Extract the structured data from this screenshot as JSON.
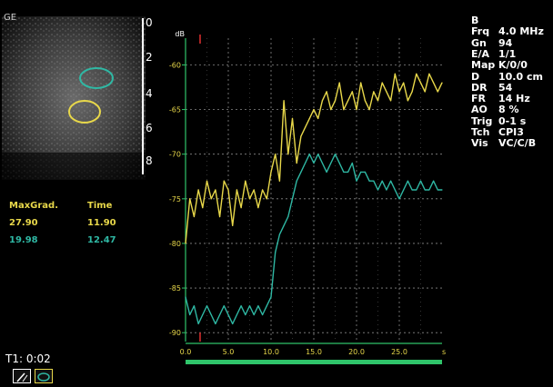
{
  "image_label": "GE",
  "depth_scale": {
    "ticks": [
      "0",
      "2",
      "4",
      "6",
      "8"
    ]
  },
  "parameters": [
    {
      "key": "B",
      "value": ""
    },
    {
      "key": "Frq",
      "value": "4.0 MHz"
    },
    {
      "key": "Gn",
      "value": "94"
    },
    {
      "key": "E/A",
      "value": "1/1"
    },
    {
      "key": "Map",
      "value": "K/0/0"
    },
    {
      "key": "D",
      "value": "10.0 cm"
    },
    {
      "key": "DR",
      "value": "54"
    },
    {
      "key": "FR",
      "value": "14 Hz"
    },
    {
      "key": "AO",
      "value": "8 %"
    },
    {
      "key": "Trig",
      "value": "0-1 s"
    },
    {
      "key": "Tch",
      "value": "CPI3"
    },
    {
      "key": "Vis",
      "value": "VC/C/B"
    }
  ],
  "measurements": {
    "col1_header": "MaxGrad.",
    "col2_header": "Time",
    "rows": [
      {
        "maxgrad": "27.90",
        "time": "11.90",
        "color": "#e8d84a"
      },
      {
        "maxgrad": "19.98",
        "time": "12.47",
        "color": "#2fb8a4"
      }
    ]
  },
  "status": {
    "t1": "T1: 0:02"
  },
  "chart_data": {
    "type": "line",
    "ylabel": "dB",
    "xlabel": "s",
    "xlim": [
      0,
      30
    ],
    "ylim": [
      -91,
      -57
    ],
    "xticks": [
      "0.0",
      "5.0",
      "10.0",
      "15.0",
      "20.0",
      "25.0"
    ],
    "yticks": [
      "-60",
      "-65",
      "-70",
      "-75",
      "-80",
      "-85",
      "-90"
    ],
    "grid": true,
    "series": [
      {
        "color": "#e8d84a",
        "x": [
          0.0,
          0.5,
          1.0,
          1.5,
          2.0,
          2.5,
          3.0,
          3.5,
          4.0,
          4.5,
          5.0,
          5.5,
          6.0,
          6.5,
          7.0,
          7.5,
          8.0,
          8.5,
          9.0,
          9.5,
          10.0,
          10.5,
          11.0,
          11.5,
          12.0,
          12.5,
          13.0,
          13.5,
          14.0,
          14.5,
          15.0,
          15.5,
          16.0,
          16.5,
          17.0,
          17.5,
          18.0,
          18.5,
          19.0,
          19.5,
          20.0,
          20.5,
          21.0,
          21.5,
          22.0,
          22.5,
          23.0,
          23.5,
          24.0,
          24.5,
          25.0,
          25.5,
          26.0,
          26.5,
          27.0,
          27.5,
          28.0,
          28.5,
          29.0,
          29.5,
          30.0
        ],
        "y": [
          -80,
          -75,
          -77,
          -74,
          -76,
          -73,
          -75,
          -74,
          -77,
          -73,
          -74,
          -78,
          -74,
          -76,
          -73,
          -75,
          -74,
          -76,
          -74,
          -75,
          -72,
          -70,
          -73,
          -64,
          -70,
          -66,
          -71,
          -68,
          -67,
          -66,
          -65,
          -66,
          -64,
          -63,
          -65,
          -64,
          -62,
          -65,
          -64,
          -63,
          -65,
          -62,
          -64,
          -65,
          -63,
          -64,
          -62,
          -63,
          -64,
          -61,
          -63,
          -62,
          -64,
          -63,
          -61,
          -62,
          -63,
          -61,
          -62,
          -63,
          -62
        ]
      },
      {
        "color": "#2fb8a4",
        "x": [
          0.0,
          0.5,
          1.0,
          1.5,
          2.0,
          2.5,
          3.0,
          3.5,
          4.0,
          4.5,
          5.0,
          5.5,
          6.0,
          6.5,
          7.0,
          7.5,
          8.0,
          8.5,
          9.0,
          9.5,
          10.0,
          10.5,
          11.0,
          11.5,
          12.0,
          12.5,
          13.0,
          13.5,
          14.0,
          14.5,
          15.0,
          15.5,
          16.0,
          16.5,
          17.0,
          17.5,
          18.0,
          18.5,
          19.0,
          19.5,
          20.0,
          20.5,
          21.0,
          21.5,
          22.0,
          22.5,
          23.0,
          23.5,
          24.0,
          24.5,
          25.0,
          25.5,
          26.0,
          26.5,
          27.0,
          27.5,
          28.0,
          28.5,
          29.0,
          29.5,
          30.0
        ],
        "y": [
          -86,
          -88,
          -87,
          -89,
          -88,
          -87,
          -88,
          -89,
          -88,
          -87,
          -88,
          -89,
          -88,
          -87,
          -88,
          -87,
          -88,
          -87,
          -88,
          -87,
          -86,
          -81,
          -79,
          -78,
          -77,
          -75,
          -73,
          -72,
          -71,
          -70,
          -71,
          -70,
          -71,
          -72,
          -71,
          -70,
          -71,
          -72,
          -72,
          -71,
          -73,
          -72,
          -72,
          -73,
          -73,
          -74,
          -73,
          -74,
          -73,
          -74,
          -75,
          -74,
          -73,
          -74,
          -74,
          -73,
          -74,
          -74,
          -73,
          -74,
          -74
        ]
      }
    ]
  },
  "colors": {
    "yellow": "#e8d84a",
    "teal": "#2fb8a4",
    "green_bar": "#2fc46a",
    "red_marker": "#e03030"
  }
}
